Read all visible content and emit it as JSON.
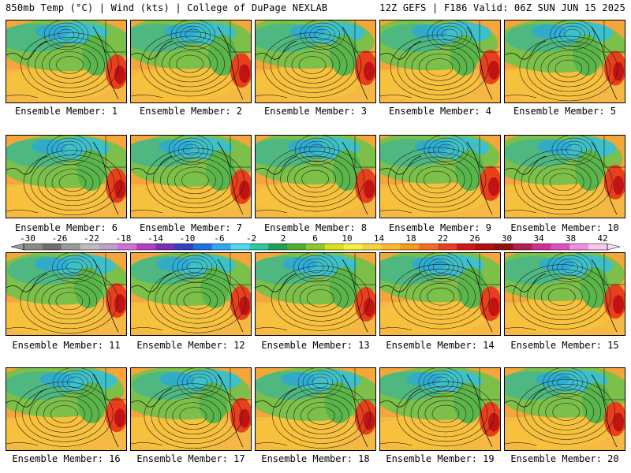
{
  "header": {
    "left": "850mb Temp (°C) | Wind (kts) | College of DuPage NEXLAB",
    "right": "12Z GEFS | F186 Valid: 06Z SUN JUN 15 2025"
  },
  "colorbar": {
    "tick_labels": [
      "-30",
      "-26",
      "-22",
      "-18",
      "-14",
      "-10",
      "-6",
      "-2",
      "2",
      "6",
      "10",
      "14",
      "18",
      "22",
      "26",
      "30",
      "34",
      "38",
      "42"
    ],
    "colors": [
      "#8a8a8a",
      "#6e6e6e",
      "#9a9a9a",
      "#bdbdbd",
      "#c0a0c8",
      "#d070d8",
      "#b040c0",
      "#7a30b0",
      "#3040c0",
      "#2070e0",
      "#30a8f0",
      "#50d8f0",
      "#30c8a0",
      "#20a050",
      "#50b030",
      "#90c830",
      "#d8e020",
      "#f8f040",
      "#f8d040",
      "#f8b830",
      "#f89820",
      "#f07020",
      "#e84020",
      "#d01818",
      "#b01010",
      "#901010",
      "#b02050",
      "#d03090",
      "#e050c0",
      "#f090e0",
      "#f8c8f0"
    ]
  },
  "panels": [
    {
      "label": "Ensemble Member: 1"
    },
    {
      "label": "Ensemble Member: 2"
    },
    {
      "label": "Ensemble Member: 3"
    },
    {
      "label": "Ensemble Member: 4"
    },
    {
      "label": "Ensemble Member: 5"
    },
    {
      "label": "Ensemble Member: 6"
    },
    {
      "label": "Ensemble Member: 7"
    },
    {
      "label": "Ensemble Member: 8"
    },
    {
      "label": "Ensemble Member: 9"
    },
    {
      "label": "Ensemble Member: 10"
    },
    {
      "label": "Ensemble Member: 11"
    },
    {
      "label": "Ensemble Member: 12"
    },
    {
      "label": "Ensemble Member: 13"
    },
    {
      "label": "Ensemble Member: 14"
    },
    {
      "label": "Ensemble Member: 15"
    },
    {
      "label": "Ensemble Member: 16"
    },
    {
      "label": "Ensemble Member: 17"
    },
    {
      "label": "Ensemble Member: 18"
    },
    {
      "label": "Ensemble Member: 19"
    },
    {
      "label": "Ensemble Member: 20"
    }
  ]
}
